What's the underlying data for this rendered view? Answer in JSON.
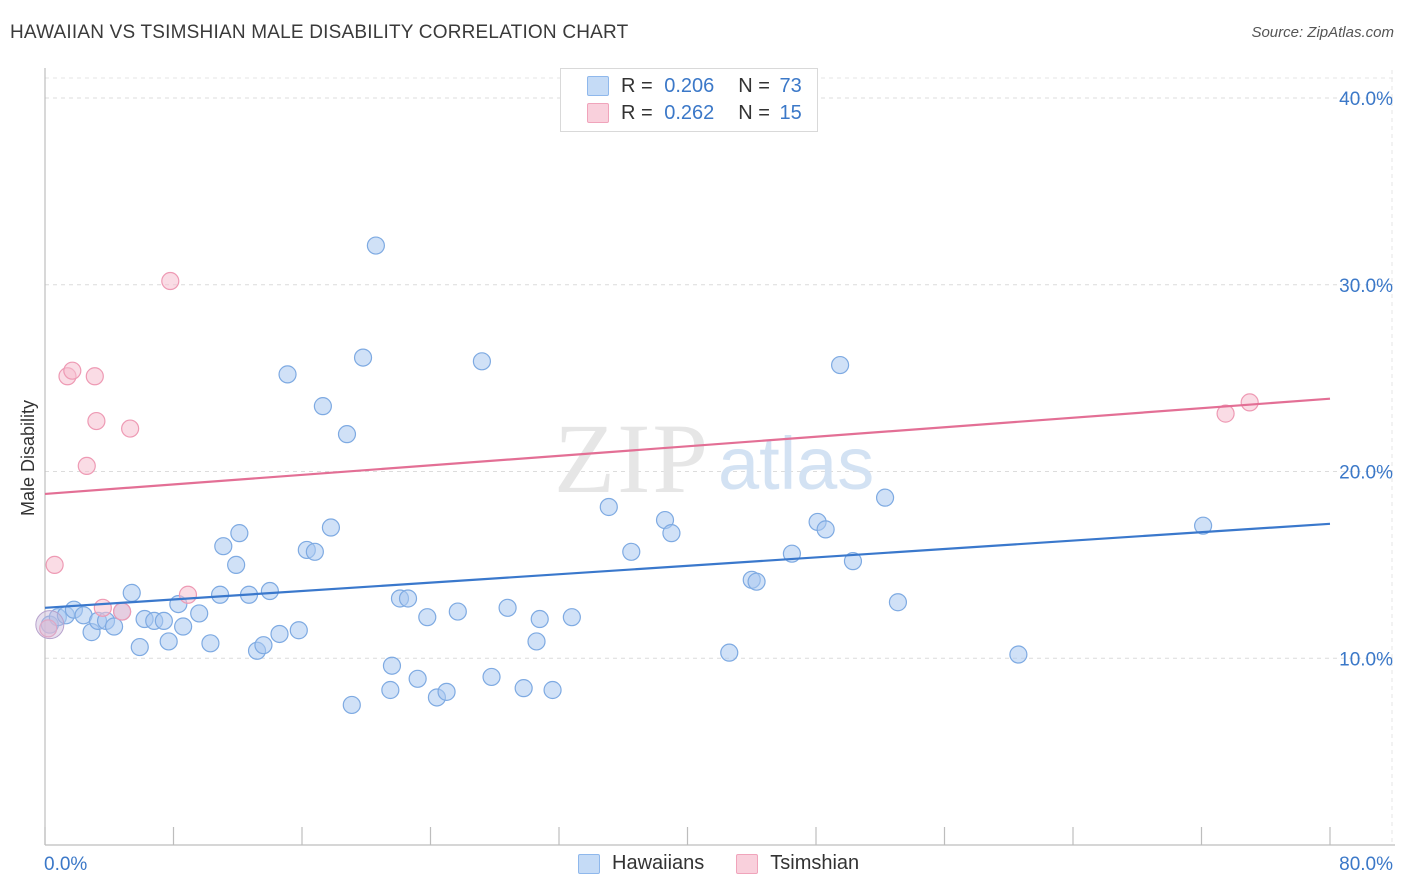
{
  "header": {
    "title": "HAWAIIAN VS TSIMSHIAN MALE DISABILITY CORRELATION CHART",
    "source": "Source: ZipAtlas.com"
  },
  "watermark": {
    "zip": "ZIP",
    "atlas": "atlas"
  },
  "legend": {
    "rows": [
      {
        "r_label": "R = ",
        "r_value": "0.206",
        "n_label": "N = ",
        "n_value": "73",
        "color": "#8fb8ec",
        "fill": "#c5dbf6"
      },
      {
        "r_label": "R = ",
        "r_value": "0.262",
        "n_label": "N = ",
        "n_value": "15",
        "color": "#f0a4bb",
        "fill": "#f9d0dc"
      }
    ]
  },
  "bottom_legend": {
    "items": [
      {
        "label": "Hawaiians",
        "fill": "#c5dbf6",
        "color": "#8fb8ec"
      },
      {
        "label": "Tsimshian",
        "fill": "#f9d0dc",
        "color": "#f0a4bb"
      }
    ]
  },
  "chart_data": {
    "type": "scatter",
    "title": "HAWAIIAN VS TSIMSHIAN MALE DISABILITY CORRELATION CHART",
    "xlabel": "",
    "ylabel": "Male Disability",
    "xlim": [
      0,
      80
    ],
    "ylim": [
      0,
      41.5
    ],
    "x_tick_labels": [
      "0.0%",
      "80.0%"
    ],
    "y_ticks": [
      10,
      20,
      30,
      40
    ],
    "y_tick_labels": [
      "10.0%",
      "20.0%",
      "30.0%",
      "40.0%"
    ],
    "grid": true,
    "series": [
      {
        "name": "Hawaiians",
        "color": "#3a78cc",
        "point_fill": "#a9c9f0",
        "point_stroke": "#7eaae2",
        "trend": {
          "x": [
            0,
            80
          ],
          "y": [
            12.7,
            17.2
          ]
        },
        "points": [
          [
            0.3,
            11.8
          ],
          [
            0.8,
            12.2
          ],
          [
            1.3,
            12.3
          ],
          [
            1.8,
            12.6
          ],
          [
            2.4,
            12.3
          ],
          [
            2.9,
            11.4
          ],
          [
            3.3,
            12.0
          ],
          [
            3.8,
            12.0
          ],
          [
            4.3,
            11.7
          ],
          [
            4.8,
            12.5
          ],
          [
            5.4,
            13.5
          ],
          [
            5.9,
            10.6
          ],
          [
            6.2,
            12.1
          ],
          [
            6.8,
            12.0
          ],
          [
            7.4,
            12.0
          ],
          [
            7.7,
            10.9
          ],
          [
            8.3,
            12.9
          ],
          [
            8.6,
            11.7
          ],
          [
            9.6,
            12.4
          ],
          [
            10.3,
            10.8
          ],
          [
            10.9,
            13.4
          ],
          [
            11.1,
            16.0
          ],
          [
            11.9,
            15.0
          ],
          [
            12.1,
            16.7
          ],
          [
            12.7,
            13.4
          ],
          [
            13.2,
            10.4
          ],
          [
            13.6,
            10.7
          ],
          [
            14.0,
            13.6
          ],
          [
            14.6,
            11.3
          ],
          [
            15.1,
            25.2
          ],
          [
            15.8,
            11.5
          ],
          [
            16.3,
            15.8
          ],
          [
            16.8,
            15.7
          ],
          [
            17.3,
            23.5
          ],
          [
            17.8,
            17.0
          ],
          [
            18.8,
            22.0
          ],
          [
            19.1,
            7.5
          ],
          [
            19.8,
            26.1
          ],
          [
            20.6,
            32.1
          ],
          [
            21.5,
            8.3
          ],
          [
            21.6,
            9.6
          ],
          [
            22.1,
            13.2
          ],
          [
            22.6,
            13.2
          ],
          [
            23.2,
            8.9
          ],
          [
            23.8,
            12.2
          ],
          [
            24.4,
            7.9
          ],
          [
            25.0,
            8.2
          ],
          [
            25.7,
            12.5
          ],
          [
            27.2,
            25.9
          ],
          [
            27.8,
            9.0
          ],
          [
            28.8,
            12.7
          ],
          [
            29.8,
            8.4
          ],
          [
            30.6,
            10.9
          ],
          [
            30.8,
            12.1
          ],
          [
            31.6,
            8.3
          ],
          [
            32.8,
            12.2
          ],
          [
            35.1,
            18.1
          ],
          [
            36.5,
            15.7
          ],
          [
            38.6,
            17.4
          ],
          [
            39.0,
            16.7
          ],
          [
            42.6,
            10.3
          ],
          [
            44.0,
            14.2
          ],
          [
            44.3,
            14.1
          ],
          [
            46.5,
            15.6
          ],
          [
            48.1,
            17.3
          ],
          [
            48.6,
            16.9
          ],
          [
            49.5,
            25.7
          ],
          [
            50.3,
            15.2
          ],
          [
            52.3,
            18.6
          ],
          [
            53.1,
            13.0
          ],
          [
            60.6,
            10.2
          ],
          [
            72.1,
            17.1
          ]
        ]
      },
      {
        "name": "Tsimshian",
        "color": "#e36f95",
        "point_fill": "#f6bfd0",
        "point_stroke": "#ee9ab4",
        "trend": {
          "x": [
            0,
            80
          ],
          "y": [
            18.8,
            23.9
          ]
        },
        "points": [
          [
            0.2,
            11.6
          ],
          [
            0.6,
            15.0
          ],
          [
            1.4,
            25.1
          ],
          [
            1.7,
            25.4
          ],
          [
            2.6,
            20.3
          ],
          [
            3.1,
            25.1
          ],
          [
            3.2,
            22.7
          ],
          [
            3.6,
            12.7
          ],
          [
            4.8,
            12.5
          ],
          [
            5.3,
            22.3
          ],
          [
            7.8,
            30.2
          ],
          [
            8.9,
            13.4
          ],
          [
            73.5,
            23.1
          ],
          [
            75.0,
            23.7
          ]
        ]
      }
    ]
  }
}
